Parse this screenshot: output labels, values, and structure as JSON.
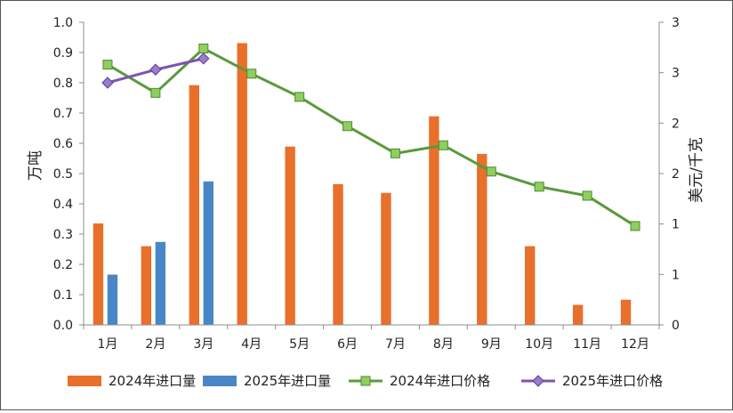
{
  "chart_data": {
    "type": "bar",
    "categories": [
      "1月",
      "2月",
      "3月",
      "4月",
      "5月",
      "6月",
      "7月",
      "8月",
      "9月",
      "10月",
      "11月",
      "12月"
    ],
    "series": [
      {
        "name": "2024年进口量",
        "kind": "bar",
        "axis": "left",
        "color": "#E8702A",
        "values": [
          0.336,
          0.261,
          0.793,
          0.932,
          0.59,
          0.466,
          0.437,
          0.69,
          0.566,
          0.261,
          0.067,
          0.084
        ]
      },
      {
        "name": "2025年进口量",
        "kind": "bar",
        "axis": "left",
        "color": "#4A86C5",
        "values": [
          0.167,
          0.275,
          0.475,
          null,
          null,
          null,
          null,
          null,
          null,
          null,
          null,
          null
        ]
      },
      {
        "name": "2024年进口价格",
        "kind": "line",
        "axis": "right",
        "color": "#5A9A3C",
        "marker": "square",
        "marker_color": "#8FCE5F",
        "values": [
          2.58,
          2.3,
          2.74,
          2.49,
          2.26,
          1.97,
          1.7,
          1.78,
          1.52,
          1.37,
          1.28,
          0.98
        ]
      },
      {
        "name": "2025年进口价格",
        "kind": "line",
        "axis": "right",
        "color": "#7B55B0",
        "marker": "diamond",
        "marker_color": "#9B7BD0",
        "values": [
          2.4,
          2.53,
          2.64,
          null,
          null,
          null,
          null,
          null,
          null,
          null,
          null,
          null
        ]
      }
    ],
    "ylabel": "万吨",
    "ylim": [
      0,
      1.0
    ],
    "yticks": [
      "0.0",
      "0.1",
      "0.2",
      "0.3",
      "0.4",
      "0.5",
      "0.6",
      "0.7",
      "0.8",
      "0.9",
      "1.0"
    ],
    "y2label": "美元/千克",
    "y2lim": [
      0,
      3
    ],
    "y2ticks": [
      {
        "value": 0,
        "label": "0"
      },
      {
        "value": 0.5,
        "label": "1"
      },
      {
        "value": 1.0,
        "label": "1"
      },
      {
        "value": 1.5,
        "label": "2"
      },
      {
        "value": 2.0,
        "label": "2"
      },
      {
        "value": 2.5,
        "label": "3"
      },
      {
        "value": 3.0,
        "label": "3"
      }
    ],
    "grid": false,
    "legend_position": "bottom"
  }
}
